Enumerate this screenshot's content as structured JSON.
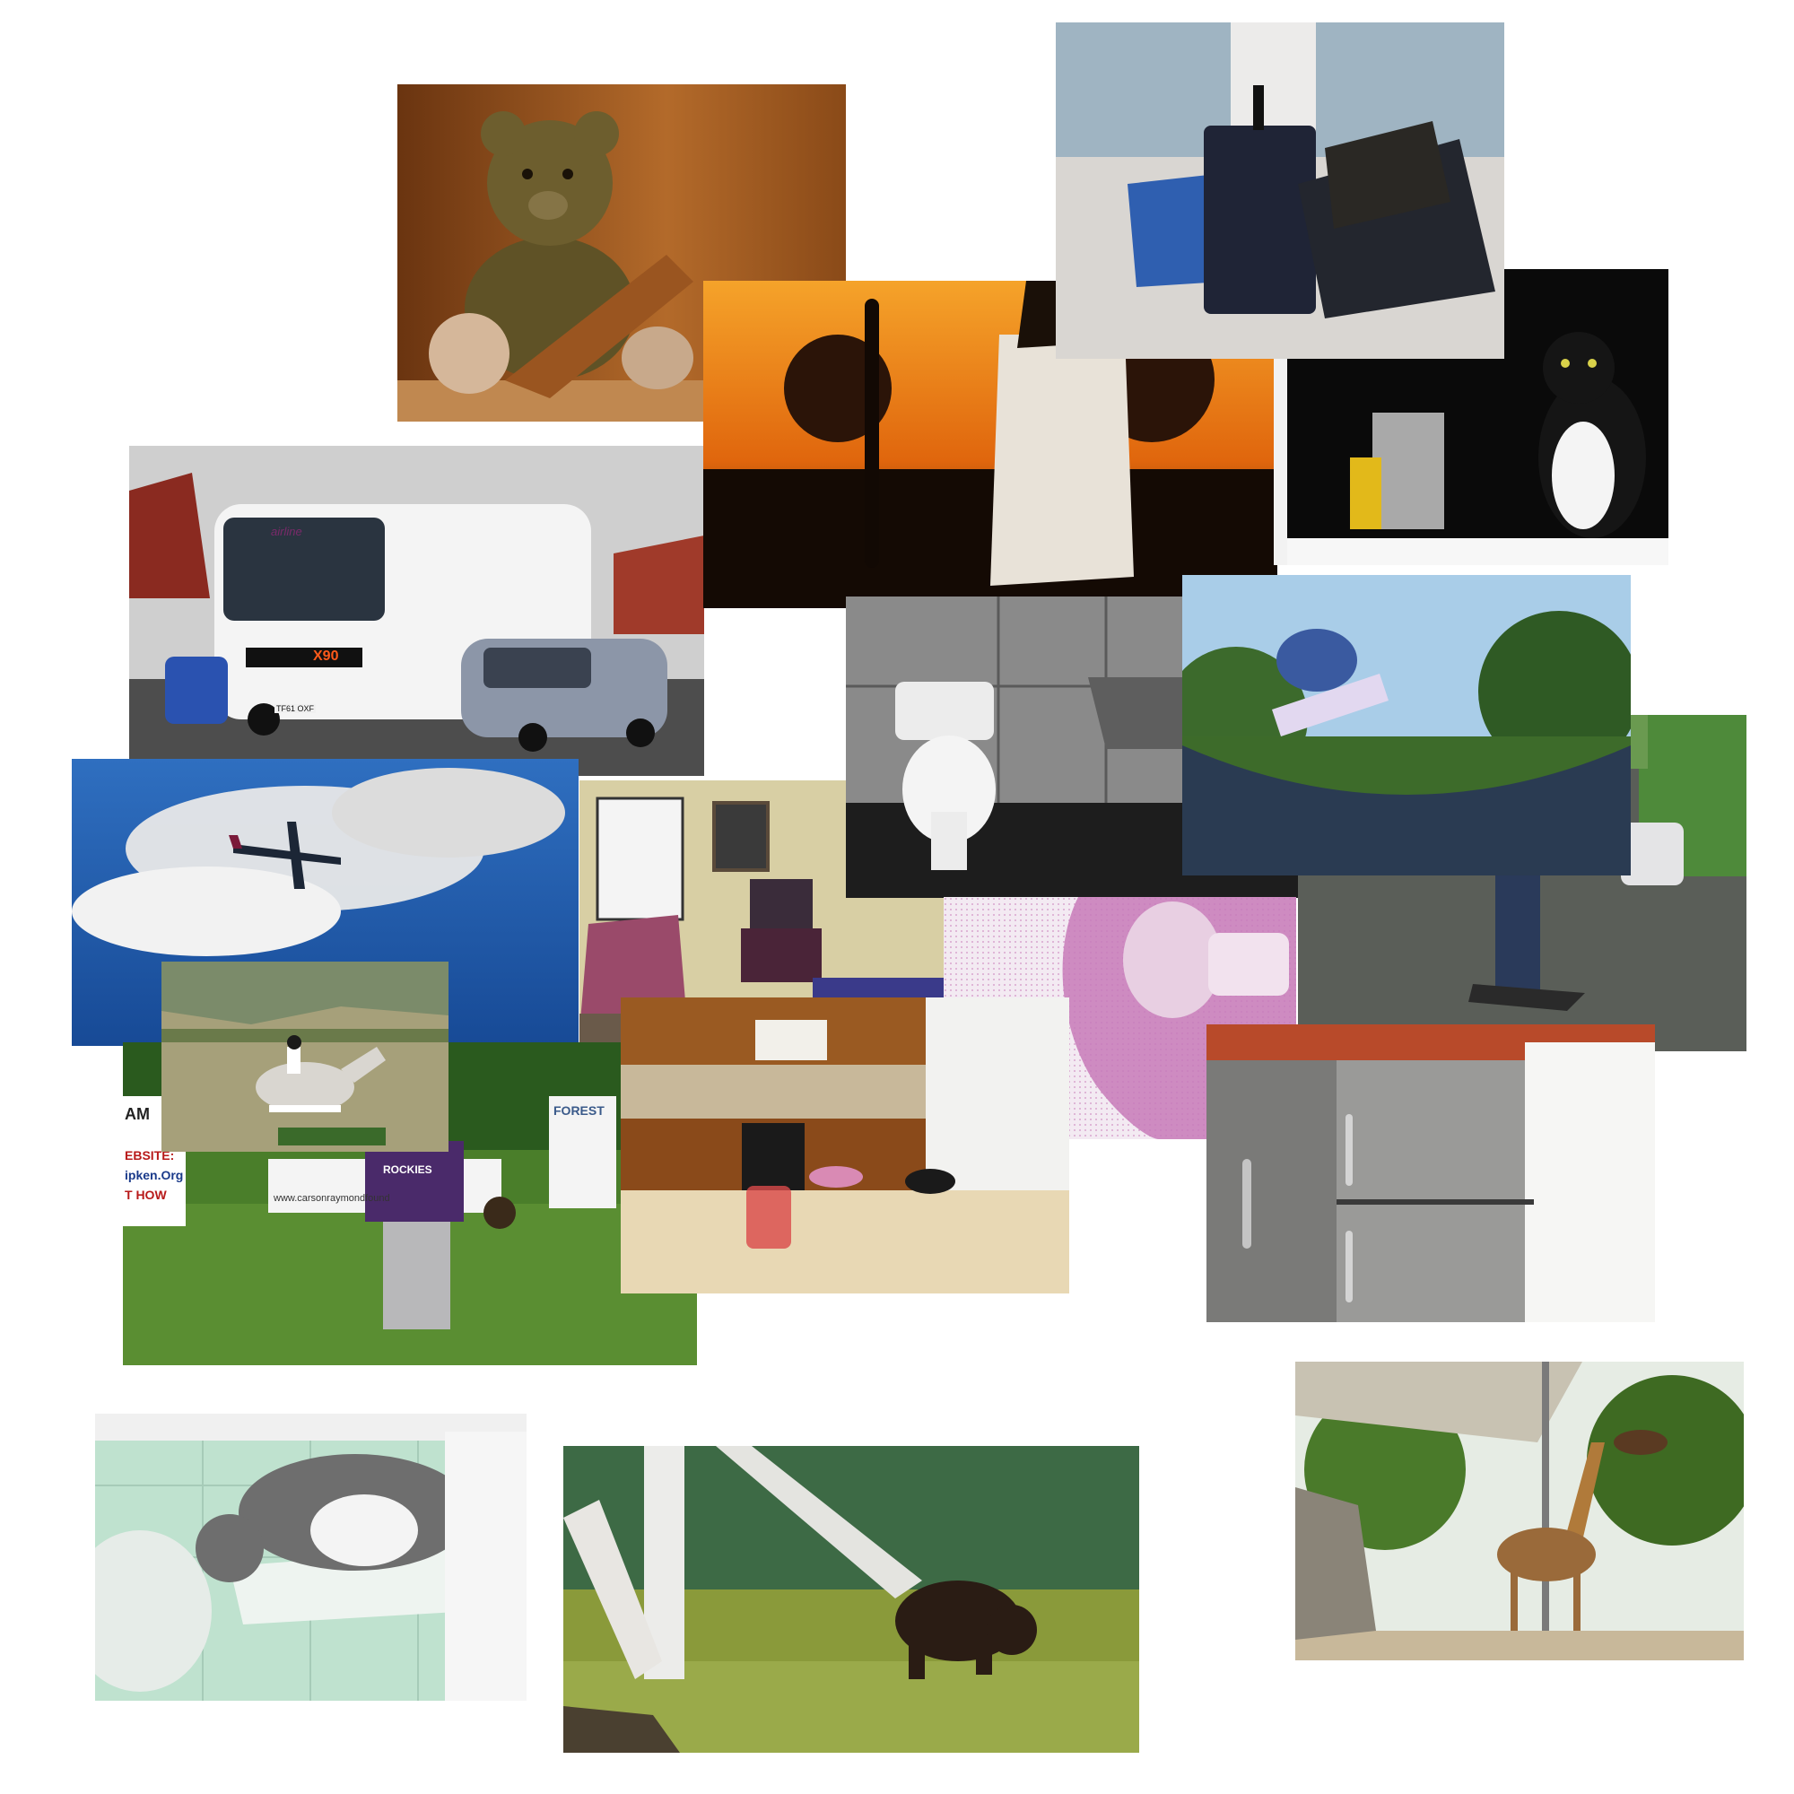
{
  "photos": {
    "teddy": {
      "subject": "teddy bear reading",
      "colors": {
        "wood": "#a0561f",
        "bear": "#6b5a2c"
      }
    },
    "luggage": {
      "subject": "luggage at airport",
      "colors": {
        "floor": "#d9d6d2",
        "glass": "#9fb4c2"
      }
    },
    "skate_sun": {
      "subject": "skateboarder at sunset",
      "colors": {
        "sky": "#f08a1a",
        "dark": "#1a0d05"
      }
    },
    "cat_window": {
      "subject": "black and white cat in window",
      "colors": {
        "bg": "#0a0a0a",
        "frame": "#f2f2f2"
      }
    },
    "bus": {
      "subject": "white airline bus on road",
      "bus_brand": "airline",
      "bus_number": "X90",
      "plate": "TF61 OXF",
      "colors": {
        "sky": "#d0d0d0",
        "road": "#4a4a4a",
        "bus": "#f4f4f4",
        "car": "#8c96a8"
      }
    },
    "bathroom": {
      "subject": "black and white bathroom with toilet",
      "colors": {
        "tile": "#8a8a8a",
        "floor": "#1d1d1d"
      }
    },
    "skatepark": {
      "subject": "skateboarder on halfpipe",
      "colors": {
        "sky": "#a9cde8",
        "ramp": "#2a3b52",
        "grass": "#3d6b2a"
      }
    },
    "street": {
      "subject": "skateboarding on wet road",
      "colors": {
        "road": "#5a5e58",
        "trees": "#4e8a3a"
      }
    },
    "airplane": {
      "subject": "jet airplane in blue sky",
      "colors": {
        "sky": "#1f5fb0",
        "cloud": "#e8e8e8"
      }
    },
    "livingroom": {
      "subject": "living room with television",
      "colors": {
        "wall": "#d8cfa4",
        "tv": "#3a2c3a",
        "chair": "#9a4a6a"
      }
    },
    "pink": {
      "subject": "pink stippled selfie",
      "colors": {
        "pink": "#c77ab8",
        "bg": "#f3eaf2"
      }
    },
    "baseball": {
      "subject": "baseball player in field",
      "banner_text_1": "FOREST",
      "banner_text_2": "www.carsonraymondfound",
      "sign_left_1": "AM",
      "sign_left_2": "EBSITE:",
      "sign_left_3": "ipken.Org",
      "sign_left_4": "T HOW",
      "jersey": "ROCKIES",
      "colors": {
        "grass": "#4a7e2a",
        "jersey": "#4a2a6a"
      }
    },
    "horse": {
      "subject": "horse jumping",
      "colors": {
        "hills": "#7b8b6a",
        "field": "#a6a07a",
        "horse": "#d9d6d0"
      }
    },
    "kitchen": {
      "subject": "kitchen with table and candle",
      "colors": {
        "cabinet": "#9a5a22",
        "table": "#e8d8b4",
        "fridge": "#f2f2f0"
      }
    },
    "fridge": {
      "subject": "stainless steel refrigerator",
      "colors": {
        "steel": "#8c8c8a",
        "wall": "#ffffff",
        "top": "#b84a2a"
      }
    },
    "cat_sink": {
      "subject": "cat in bathroom sink",
      "colors": {
        "tile": "#bfe2cf",
        "sink": "#eef4f0",
        "cat": "#6e6e6e"
      }
    },
    "bear": {
      "subject": "bear among birch trees",
      "colors": {
        "grass": "#8a9a3a",
        "mural": "#3d6a45",
        "bear": "#2a1c14"
      }
    },
    "giraffe": {
      "subject": "giraffes under canopy",
      "colors": {
        "trees": "#4a7a2a",
        "sky": "#e6ece4",
        "giraffe": "#9a6a3a"
      }
    }
  }
}
